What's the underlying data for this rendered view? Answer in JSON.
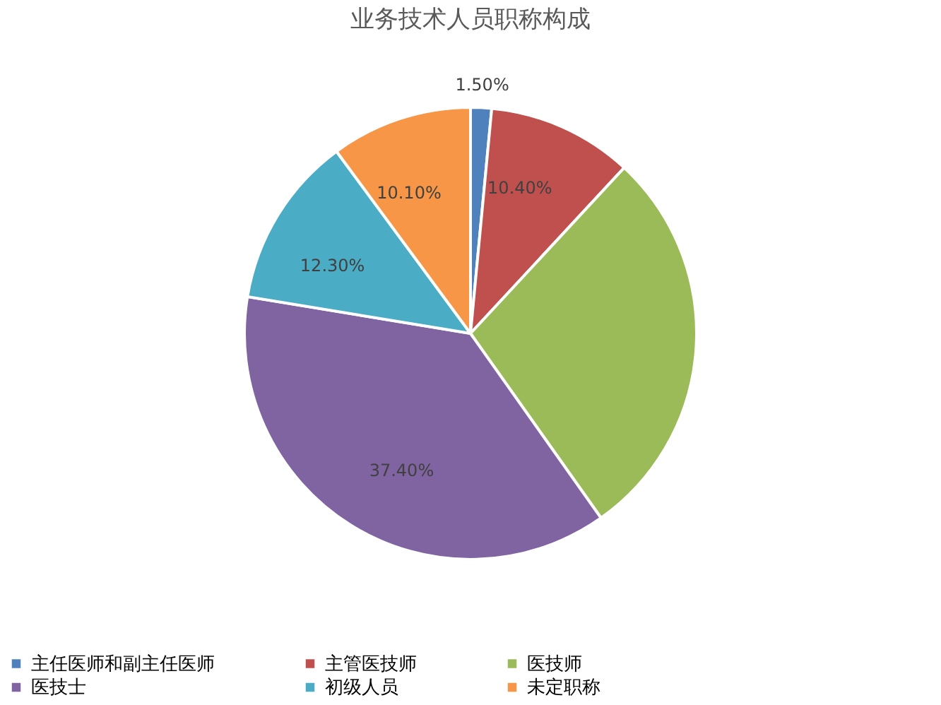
{
  "chart_data": {
    "type": "pie",
    "title": "业务技术人员职称构成",
    "categories": [
      "主任医师和副主任医师",
      "主管医技师",
      "医技师",
      "医技士",
      "初级人员",
      "未定职称"
    ],
    "values": [
      1.5,
      10.4,
      28.3,
      37.4,
      12.3,
      10.1
    ],
    "colors": [
      "#4f81bd",
      "#c0504d",
      "#9bbb59",
      "#8064a2",
      "#4bacc6",
      "#f79646"
    ],
    "value_labels": [
      "1.50%",
      "10.40%",
      null,
      "37.40%",
      "12.30%",
      "10.10%"
    ],
    "legend": "bottom"
  }
}
